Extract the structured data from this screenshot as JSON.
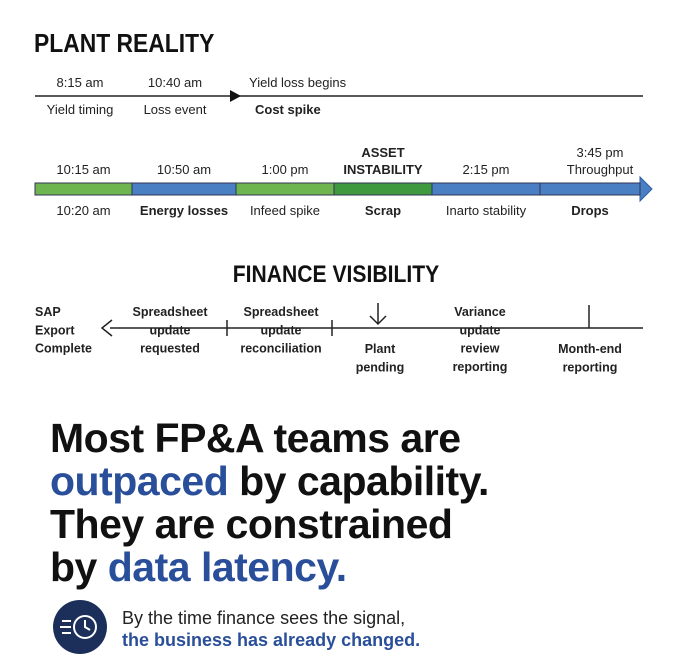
{
  "plant_reality": {
    "title": "PLANT REALITY",
    "top_timeline": [
      {
        "above": "8:15 am",
        "below": "Yield timing"
      },
      {
        "above": "10:40 am",
        "below": "Loss event"
      },
      {
        "above": "Yield loss begins",
        "below": "Cost spike"
      }
    ],
    "bar_timeline": [
      {
        "above": [
          "10:15 am"
        ],
        "below": "10:20 am"
      },
      {
        "above": [
          "10:50 am"
        ],
        "below": "Energy losses"
      },
      {
        "above": [
          "1:00 pm"
        ],
        "below": "Infeed spike"
      },
      {
        "above": [
          "ASSET",
          "INSTABILITY"
        ],
        "below": "Scrap"
      },
      {
        "above": [
          "2:15 pm"
        ],
        "below": "Inarto stability"
      },
      {
        "above": [
          "3:45 pm",
          "Throughput"
        ],
        "below": "Drops"
      }
    ]
  },
  "finance_visibility": {
    "title": "FINANCE VISIBILITY",
    "steps": [
      {
        "lines": [
          "SAP",
          "Export",
          "Complete"
        ]
      },
      {
        "lines": [
          "Spreadsheet",
          "update",
          "requested"
        ]
      },
      {
        "lines": [
          "Spreadsheet",
          "update",
          "reconciliation"
        ]
      },
      {
        "lines": [
          "Plant",
          "pending"
        ]
      },
      {
        "lines": [
          "Variance",
          "update",
          "review",
          "reporting"
        ]
      },
      {
        "lines": [
          "Month-end",
          "reporting"
        ]
      }
    ]
  },
  "headline": {
    "lines": [
      [
        "Most FP&A teams are"
      ],
      [
        "outpaced",
        " by capability."
      ],
      [
        "They are constrained"
      ],
      [
        "by ",
        "data latency."
      ]
    ]
  },
  "footer": {
    "lines": [
      "By the time finance sees the signal,",
      "the business has already changed."
    ]
  }
}
